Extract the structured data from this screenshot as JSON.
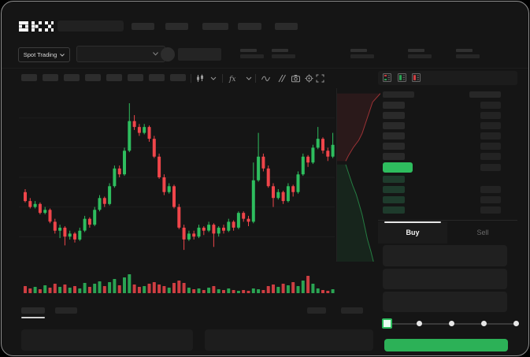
{
  "app": {
    "logo_text": "OKX"
  },
  "colors": {
    "up_green": "#2ebd5e",
    "down_red": "#ef454a",
    "buy_button_green": "#2cb157",
    "last_price_green": "#2ebd5e",
    "bid_row_green": "#1e3b2c"
  },
  "header": {
    "nav_item_count": 5
  },
  "market_bar": {
    "market_selector_label": "Spot Trading",
    "stat_pair_count": 5
  },
  "toolbar": {
    "timeframe_button_count": 8,
    "icons": [
      "candles-icon",
      "chevron-down-icon",
      "indicators-icon",
      "chevron-down-icon",
      "line-tool-icon",
      "brush-icon",
      "camera-icon",
      "settings-icon",
      "expand-icon"
    ]
  },
  "orderbook": {
    "view_toggles": [
      "both",
      "bids",
      "asks"
    ],
    "ask_row_count": 6,
    "bid_row_count": 4
  },
  "trade_panel": {
    "tabs": [
      {
        "label": "Buy",
        "active": true
      },
      {
        "label": "Sell",
        "active": false
      }
    ],
    "field_count": 3,
    "slider": {
      "stop_count": 5,
      "active_stop": 0
    },
    "submit_label": ""
  },
  "bottom_bar": {
    "left_tab_count": 2,
    "active_tab_index": 0,
    "right_button_count": 2,
    "panel_count": 2
  },
  "chart_data": [
    {
      "type": "candlestick",
      "title": "",
      "xlabel": "",
      "ylabel": "",
      "x_axis_labels_visible": false,
      "y_axis_labels_visible": false,
      "grid": "faint-horizontal",
      "price_range": [
        36,
        94
      ],
      "up_color": "#2ebd5e",
      "down_color": "#ef454a",
      "ohlc": [
        [
          60,
          61,
          56.5,
          57
        ],
        [
          57,
          58,
          54.5,
          55
        ],
        [
          55,
          57,
          54.5,
          56
        ],
        [
          56,
          56.5,
          52.5,
          53
        ],
        [
          53,
          55,
          52.5,
          54
        ],
        [
          54,
          54.5,
          49.5,
          50
        ],
        [
          50,
          51,
          46,
          47
        ],
        [
          47,
          49,
          44.5,
          48
        ],
        [
          48,
          48.5,
          42,
          45
        ],
        [
          45,
          47,
          44,
          46
        ],
        [
          46,
          46.5,
          43,
          44
        ],
        [
          44,
          48,
          43.5,
          47
        ],
        [
          47,
          52,
          46.5,
          51
        ],
        [
          51,
          51.5,
          48,
          49
        ],
        [
          49,
          55,
          48.5,
          54
        ],
        [
          54,
          59,
          53.5,
          58
        ],
        [
          58,
          58.5,
          55,
          56
        ],
        [
          56,
          63,
          55.5,
          62
        ],
        [
          62,
          69,
          61.5,
          68
        ],
        [
          68,
          69,
          65,
          66
        ],
        [
          66,
          75,
          65.5,
          74
        ],
        [
          74,
          90,
          73.5,
          84
        ],
        [
          84,
          86,
          81,
          82
        ],
        [
          82,
          83,
          79,
          80
        ],
        [
          80,
          83,
          79.5,
          82
        ],
        [
          82,
          82.5,
          77,
          78
        ],
        [
          78,
          79,
          71.5,
          72
        ],
        [
          72,
          73,
          64.5,
          65
        ],
        [
          65,
          66,
          59,
          60
        ],
        [
          60,
          63,
          59.5,
          62
        ],
        [
          62,
          62.5,
          54.5,
          55
        ],
        [
          55,
          56,
          47.5,
          48
        ],
        [
          48,
          49,
          40.5,
          44
        ],
        [
          44,
          47,
          43.5,
          46
        ],
        [
          46,
          47,
          44,
          45
        ],
        [
          45,
          49,
          44.5,
          48
        ],
        [
          48,
          48.5,
          45.5,
          47
        ],
        [
          47,
          50,
          46.5,
          49
        ],
        [
          49,
          49.5,
          41.5,
          46
        ],
        [
          46,
          48.5,
          45,
          48
        ],
        [
          48,
          49,
          46,
          47
        ],
        [
          47,
          51,
          46.5,
          50
        ],
        [
          50,
          50.5,
          47,
          48
        ],
        [
          48,
          53.5,
          47.5,
          53
        ],
        [
          53,
          53.5,
          50,
          51
        ],
        [
          51,
          52,
          48.5,
          50
        ],
        [
          50,
          70,
          49.5,
          64
        ],
        [
          64,
          80,
          63.5,
          72
        ],
        [
          72,
          73,
          67,
          68
        ],
        [
          68,
          69,
          61.5,
          62
        ],
        [
          62,
          63,
          55,
          58
        ],
        [
          58,
          61,
          57.5,
          60
        ],
        [
          60,
          60.5,
          56,
          57
        ],
        [
          57,
          63,
          56.5,
          62
        ],
        [
          62,
          62.5,
          58.5,
          60
        ],
        [
          60,
          67,
          59.5,
          66
        ],
        [
          66,
          73,
          65.5,
          72
        ],
        [
          72,
          72.5,
          68.5,
          70
        ],
        [
          70,
          76,
          69.5,
          75
        ],
        [
          75,
          82,
          74.5,
          78
        ],
        [
          78,
          78.5,
          73,
          74
        ],
        [
          74,
          75,
          70.5,
          72
        ],
        [
          72,
          80,
          71.5,
          76
        ]
      ],
      "volume": [
        9,
        6,
        8,
        5,
        10,
        7,
        12,
        8,
        11,
        7,
        9,
        6,
        13,
        8,
        12,
        15,
        9,
        14,
        18,
        10,
        20,
        24,
        11,
        8,
        9,
        12,
        14,
        11,
        9,
        7,
        13,
        16,
        13,
        7,
        5,
        6,
        4,
        7,
        9,
        5,
        4,
        6,
        4,
        3,
        4,
        3,
        6,
        5,
        4,
        9,
        11,
        8,
        12,
        10,
        14,
        9,
        16,
        22,
        12,
        6,
        4,
        3,
        5
      ]
    },
    {
      "type": "area",
      "name": "sideways-depth",
      "series": [
        {
          "name": "asks",
          "color": "#ef454a",
          "points_pct": [
            [
              100,
              3
            ],
            [
              82,
              8
            ],
            [
              74,
              14
            ],
            [
              66,
              20
            ],
            [
              58,
              26
            ],
            [
              50,
              30
            ],
            [
              38,
              34
            ],
            [
              26,
              39
            ],
            [
              20,
              42
            ]
          ]
        },
        {
          "name": "bids",
          "color": "#2ebd5e",
          "points_pct": [
            [
              20,
              44
            ],
            [
              28,
              50
            ],
            [
              36,
              56
            ],
            [
              44,
              61
            ],
            [
              50,
              66
            ],
            [
              58,
              73
            ],
            [
              64,
              80
            ],
            [
              70,
              87
            ],
            [
              78,
              94
            ],
            [
              84,
              100
            ]
          ]
        }
      ]
    }
  ]
}
